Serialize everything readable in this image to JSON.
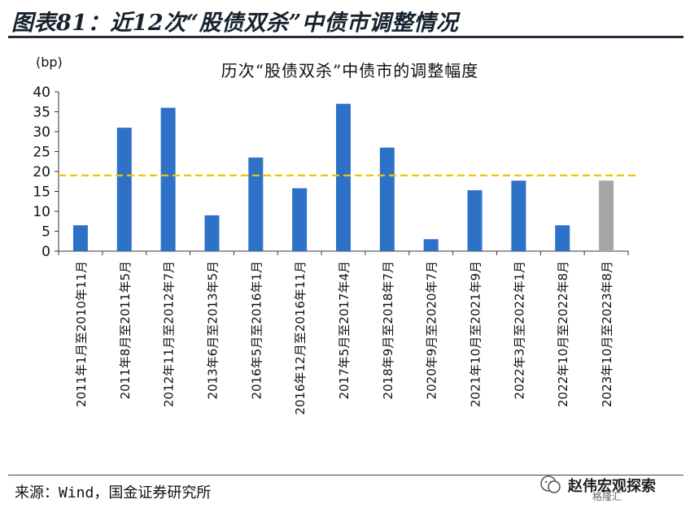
{
  "figure": {
    "title": "图表81：近12次“股债双杀”中债市调整情况",
    "source": "来源：Wind，国金证券研究所",
    "watermark": "赵伟宏观探索",
    "watermark_sub": "格隆汇"
  },
  "chart_data": {
    "type": "bar",
    "title": "历次“股债双杀”中债市的调整幅度",
    "ylabel": "(bp)",
    "xlabel": "",
    "ylim": [
      0,
      40
    ],
    "yticks": [
      0,
      5,
      10,
      15,
      20,
      25,
      30,
      35,
      40
    ],
    "categories": [
      "2011年1月至2010年11月",
      "2011年8月至2011年5月",
      "2012年11月至2012年7月",
      "2013年6月至2013年5月",
      "2016年5月至2016年1月",
      "2016年12月至2016年11月",
      "2017年5月至2017年4月",
      "2018年9月至2018年7月",
      "2020年9月至2020年7月",
      "2021年10月至2021年9月",
      "2022年3月至2022年1月",
      "2022年10月至2022年8月",
      "2023年10月至2023年8月"
    ],
    "values": [
      6.5,
      31,
      36,
      9,
      23.5,
      15.8,
      37,
      26,
      3,
      15.3,
      17.7,
      6.5,
      17.7
    ],
    "bar_colors": [
      "#2e72c8",
      "#2e72c8",
      "#2e72c8",
      "#2e72c8",
      "#2e72c8",
      "#2e72c8",
      "#2e72c8",
      "#2e72c8",
      "#2e72c8",
      "#2e72c8",
      "#2e72c8",
      "#2e72c8",
      "#a6a6a6"
    ],
    "reference_line": {
      "value": 19,
      "color": "#f2c200",
      "style": "dashed"
    },
    "grid": false,
    "legend": "none"
  }
}
